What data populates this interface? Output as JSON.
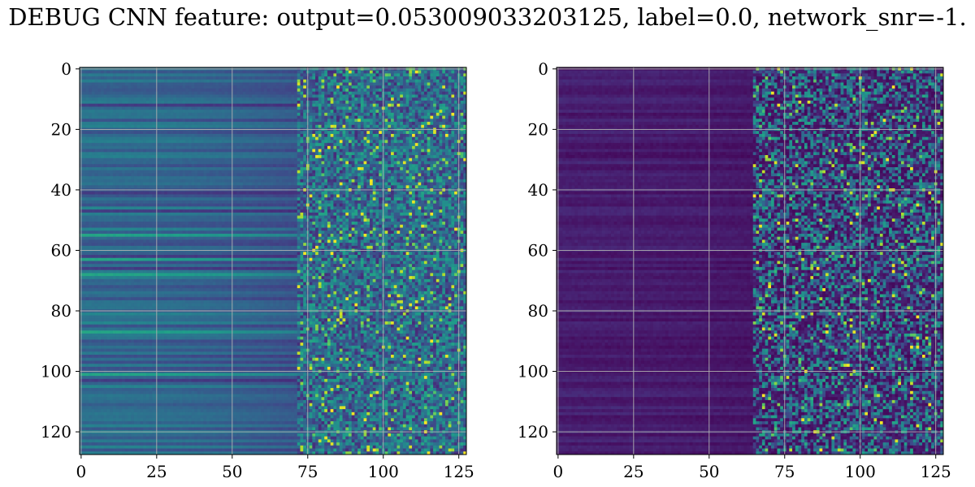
{
  "title": "DEBUG CNN feature: output=0.053009033203125, label=0.0, network_snr=-1.",
  "colormap": "viridis",
  "chart_data": [
    {
      "type": "heatmap",
      "name": "left",
      "rows": 128,
      "cols": 128,
      "xlim": [
        0,
        127
      ],
      "ylim": [
        0,
        127
      ],
      "xticks": [
        0,
        25,
        50,
        75,
        100,
        125
      ],
      "yticks": [
        0,
        20,
        40,
        60,
        80,
        100,
        120
      ],
      "grid": true,
      "noise_onset_col": 72,
      "base_level": 0.35,
      "bright_rows": [
        55,
        63,
        68,
        87,
        101
      ],
      "dark_rows": [
        12,
        41,
        47,
        62,
        66,
        103
      ]
    },
    {
      "type": "heatmap",
      "name": "right",
      "rows": 128,
      "cols": 128,
      "xlim": [
        0,
        127
      ],
      "ylim": [
        0,
        127
      ],
      "xticks": [
        0,
        25,
        50,
        75,
        100,
        125
      ],
      "yticks": [
        0,
        20,
        40,
        60,
        80,
        100,
        120
      ],
      "grid": true,
      "noise_onset_col": 65,
      "base_level": 0.08,
      "bright_rows": [],
      "dark_rows": []
    }
  ]
}
